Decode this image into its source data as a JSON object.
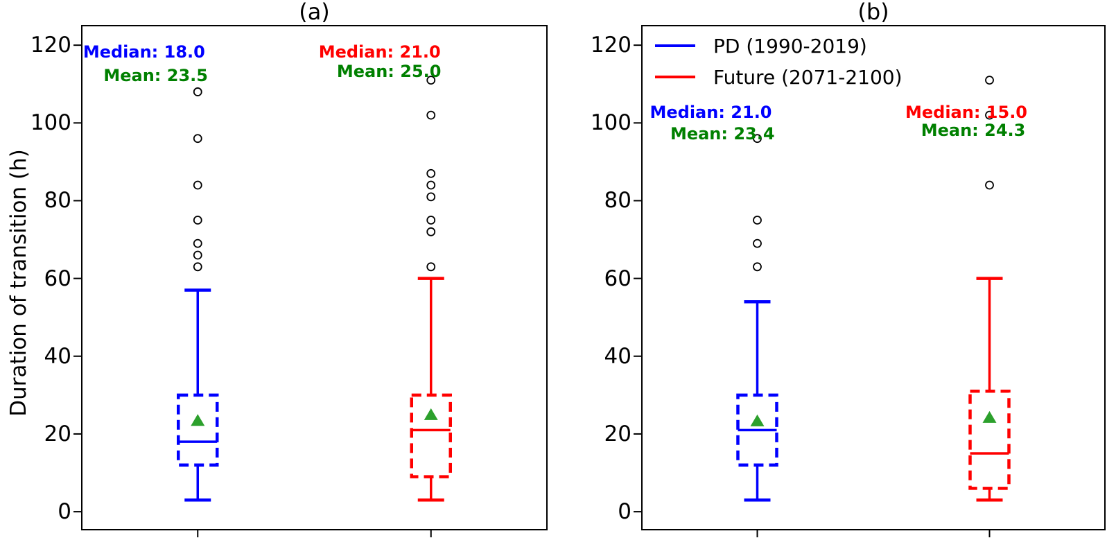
{
  "figure": {
    "ylabel": "Duration of transition (h)",
    "background_color": "#ffffff",
    "axis_color": "#000000"
  },
  "colors": {
    "pd_blue": "#0000ff",
    "future_red": "#ff0000",
    "mean_marker_green": "#2ca02c",
    "mean_text_green": "#008000",
    "outlier_black": "#000000"
  },
  "chart_data": [
    {
      "id": "a",
      "type": "box",
      "title": "(a)",
      "ylabel": "Duration of transition (h)",
      "ylim": [
        -4.8,
        125.2
      ],
      "yticks": [
        0,
        20,
        40,
        60,
        80,
        100,
        120
      ],
      "grid": false,
      "box_style": "dashed-box-solid-whiskers",
      "series": [
        {
          "name": "PD (1990-2019)",
          "color": "#0000ff",
          "position": 0.25,
          "q1": 12,
          "median": 18.0,
          "q3": 30,
          "mean": 23.5,
          "whisker_low": 3,
          "whisker_high": 57,
          "outliers": [
            63,
            66,
            69,
            75,
            84,
            96,
            108
          ]
        },
        {
          "name": "Future (2071-2100)",
          "color": "#ff0000",
          "position": 0.75,
          "q1": 9,
          "median": 21.0,
          "q3": 30,
          "mean": 25.0,
          "whisker_low": 3,
          "whisker_high": 60,
          "outliers": [
            63,
            72,
            75,
            81,
            84,
            87,
            102,
            111
          ]
        }
      ],
      "annotations": [
        {
          "text": "Median: 18.0",
          "color": "#0000ff",
          "x": 0.135,
          "y": 118.0
        },
        {
          "text": "Mean: 23.5",
          "color": "#008000",
          "x": 0.16,
          "y": 112.0
        },
        {
          "text": "Median: 21.0",
          "color": "#ff0000",
          "x": 0.64,
          "y": 118.0
        },
        {
          "text": "Mean: 25.0",
          "color": "#008000",
          "x": 0.66,
          "y": 113.0
        }
      ]
    },
    {
      "id": "b",
      "type": "box",
      "title": "(b)",
      "ylim": [
        -4.8,
        125.2
      ],
      "yticks": [
        0,
        20,
        40,
        60,
        80,
        100,
        120
      ],
      "grid": false,
      "box_style": "dashed-box-solid-whiskers",
      "legend": {
        "position": "upper-left",
        "entries": [
          {
            "label": "PD (1990-2019)",
            "color": "#0000ff"
          },
          {
            "label": "Future (2071-2100)",
            "color": "#ff0000"
          }
        ]
      },
      "series": [
        {
          "name": "PD (1990-2019)",
          "color": "#0000ff",
          "position": 0.25,
          "q1": 12,
          "median": 21.0,
          "q3": 30,
          "mean": 23.4,
          "whisker_low": 3,
          "whisker_high": 54,
          "outliers": [
            63,
            69,
            75,
            96
          ]
        },
        {
          "name": "Future (2071-2100)",
          "color": "#ff0000",
          "position": 0.75,
          "q1": 6,
          "median": 15.0,
          "q3": 31,
          "mean": 24.3,
          "whisker_low": 3,
          "whisker_high": 60,
          "outliers": [
            84,
            102,
            111
          ]
        }
      ],
      "annotations": [
        {
          "text": "Median: 21.0",
          "color": "#0000ff",
          "x": 0.15,
          "y": 102.5
        },
        {
          "text": "Mean: 23.4",
          "color": "#008000",
          "x": 0.175,
          "y": 97.0
        },
        {
          "text": "Median: 15.0",
          "color": "#ff0000",
          "x": 0.7,
          "y": 102.5
        },
        {
          "text": "Mean: 24.3",
          "color": "#008000",
          "x": 0.715,
          "y": 98.0
        }
      ]
    }
  ]
}
